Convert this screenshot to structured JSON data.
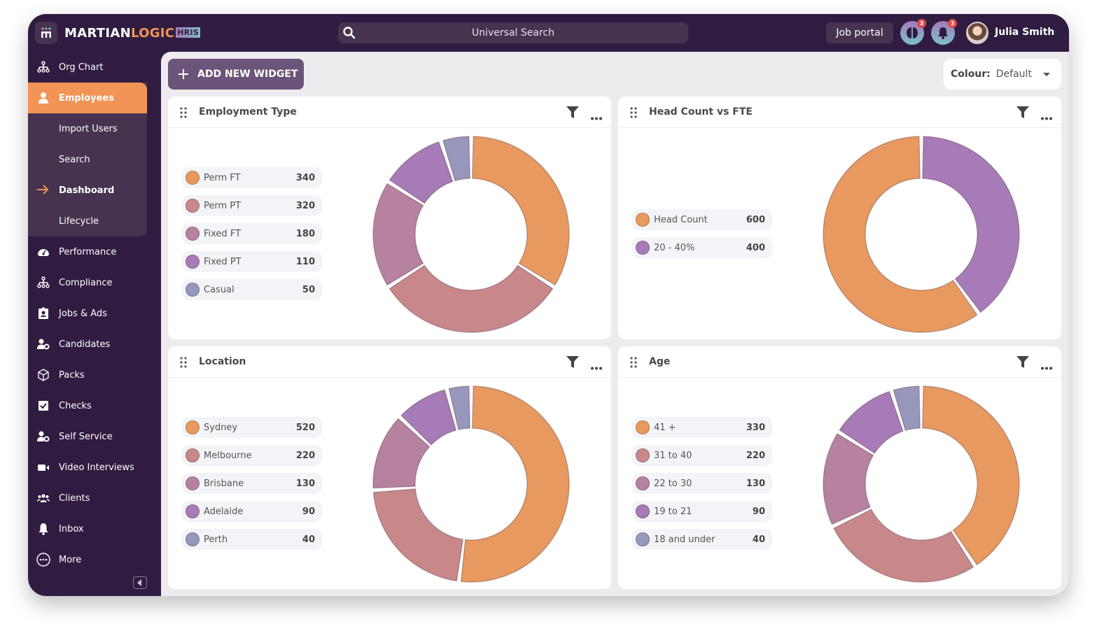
{
  "app": {
    "brand_main": "MARTIAN",
    "brand_accent": "LOGIC",
    "brand_tag": "HRIS"
  },
  "header": {
    "search_placeholder": "Universal Search",
    "job_portal_label": "Job portal",
    "brain_badge": "3",
    "bell_badge": "3",
    "user_name": "Julia Smith"
  },
  "sidebar": {
    "items": [
      {
        "label": "Org Chart",
        "icon": "org-chart-icon"
      },
      {
        "label": "Employees",
        "icon": "employee-icon",
        "active": true
      },
      {
        "label": "Import Users",
        "sub": true
      },
      {
        "label": "Search",
        "sub": true
      },
      {
        "label": "Dashboard",
        "sub": true,
        "current": true
      },
      {
        "label": "Lifecycle",
        "sub": true
      },
      {
        "label": "Performance",
        "icon": "gauge-icon"
      },
      {
        "label": "Compliance",
        "icon": "org-chart-icon"
      },
      {
        "label": "Jobs & Ads",
        "icon": "id-badge-icon"
      },
      {
        "label": "Candidates",
        "icon": "user-gear-icon"
      },
      {
        "label": "Packs",
        "icon": "box-icon"
      },
      {
        "label": "Checks",
        "icon": "checkbox-icon"
      },
      {
        "label": "Self Service",
        "icon": "user-gear-icon"
      },
      {
        "label": "Video Interviews",
        "icon": "video-icon"
      },
      {
        "label": "Clients",
        "icon": "users-icon"
      },
      {
        "label": "Inbox",
        "icon": "bell-icon"
      },
      {
        "label": "More",
        "icon": "more-circle-icon"
      }
    ]
  },
  "toolbar": {
    "add_widget_label": "ADD NEW WIDGET",
    "colour_label": "Colour:",
    "colour_value": "Default"
  },
  "colors": {
    "orange": "#e8995f",
    "rose": "#c8888a",
    "mauve": "#b7829f",
    "purple": "#a77bb7",
    "slate": "#9797bb"
  },
  "widgets": [
    {
      "title": "Employment Type"
    },
    {
      "title": "Head Count vs FTE"
    },
    {
      "title": "Location"
    },
    {
      "title": "Age"
    }
  ],
  "chart_data": [
    {
      "type": "pie",
      "title": "Employment Type",
      "categories": [
        "Perm FT",
        "Perm PT",
        "Fixed FT",
        "Fixed PT",
        "Casual"
      ],
      "values": [
        340,
        320,
        180,
        110,
        50
      ],
      "colors": [
        "#e8995f",
        "#c8888a",
        "#b7829f",
        "#a77bb7",
        "#9797bb"
      ],
      "legend": "left"
    },
    {
      "type": "pie",
      "title": "Head Count vs FTE",
      "categories": [
        "Head Count",
        "20 - 40%"
      ],
      "values": [
        600,
        400
      ],
      "colors": [
        "#e8995f",
        "#a77bb7"
      ],
      "legend": "left"
    },
    {
      "type": "pie",
      "title": "Location",
      "categories": [
        "Sydney",
        "Melbourne",
        "Brisbane",
        "Adelaide",
        "Perth"
      ],
      "values": [
        520,
        220,
        130,
        90,
        40
      ],
      "colors": [
        "#e8995f",
        "#c8888a",
        "#b7829f",
        "#a77bb7",
        "#9797bb"
      ],
      "legend": "left"
    },
    {
      "type": "pie",
      "title": "Age",
      "categories": [
        "41 +",
        "31 to 40",
        "22 to 30",
        "19 to 21",
        "18 and under"
      ],
      "values": [
        330,
        220,
        130,
        90,
        40
      ],
      "colors": [
        "#e8995f",
        "#c8888a",
        "#b7829f",
        "#a77bb7",
        "#9797bb"
      ],
      "legend": "left"
    }
  ]
}
